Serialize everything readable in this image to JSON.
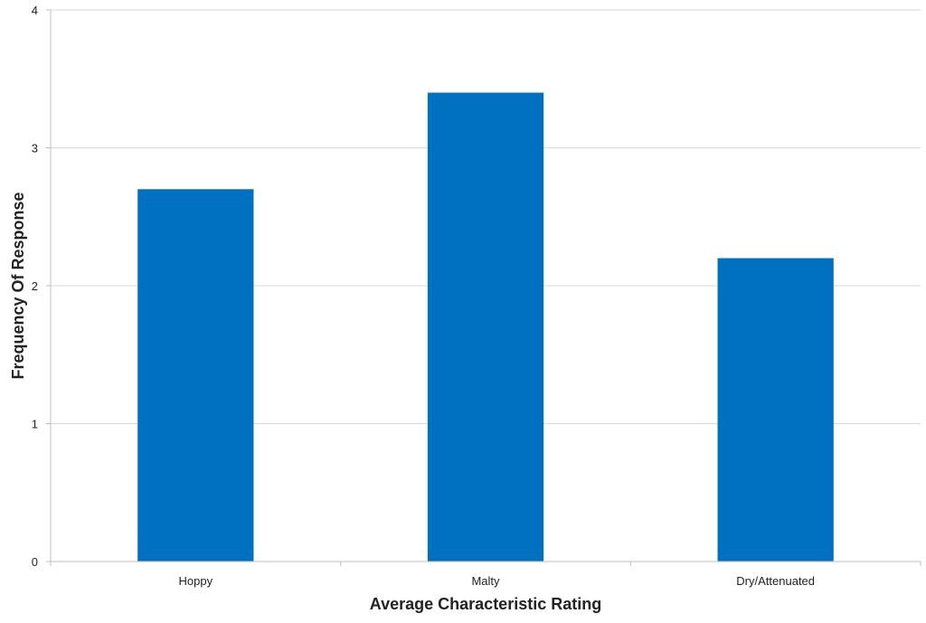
{
  "chart_data": {
    "type": "bar",
    "categories": [
      "Hoppy",
      "Malty",
      "Dry/Attenuated"
    ],
    "values": [
      2.7,
      3.4,
      2.2
    ],
    "title": "",
    "xlabel": "Average Characteristic Rating",
    "ylabel": "Frequency Of Response",
    "ylim": [
      0,
      4
    ],
    "yticks": [
      0,
      1,
      2,
      3,
      4
    ],
    "grid": true,
    "legend": "none",
    "bar_color": "#0070C0"
  }
}
